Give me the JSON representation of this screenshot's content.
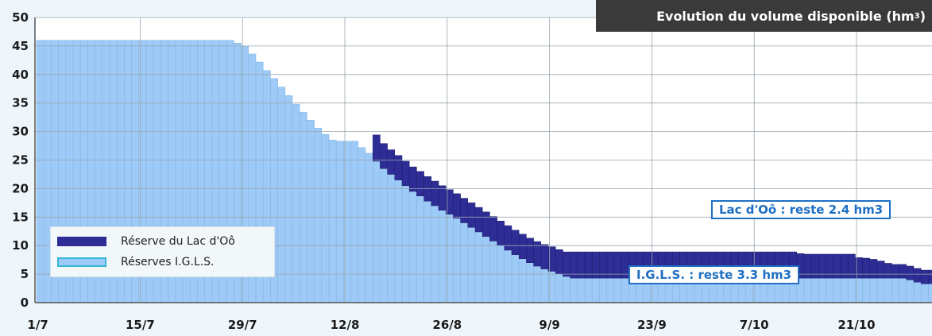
{
  "chart_data": {
    "type": "bar",
    "title_text": "Evolution du volume disponible (hm",
    "title_sup": "3",
    "title_close": ")",
    "ylim": [
      0,
      50
    ],
    "yticks": [
      0,
      5,
      10,
      15,
      20,
      25,
      30,
      35,
      40,
      45,
      50
    ],
    "x_tick_labels": [
      "1/7",
      "15/7",
      "29/7",
      "12/8",
      "26/8",
      "9/9",
      "23/9",
      "7/10",
      "21/10"
    ],
    "x_tick_day_index": [
      0,
      14,
      28,
      42,
      56,
      70,
      84,
      98,
      112
    ],
    "days_shown": 123,
    "grid": true,
    "legend_position": "bottom-left",
    "series": [
      {
        "name": "Réserves I.G.L.S.",
        "color": "#9dcaf6",
        "values": [
          46,
          46,
          46,
          46,
          46,
          46,
          46,
          46,
          46,
          46,
          46,
          46,
          46,
          46,
          46,
          46,
          46,
          46,
          46,
          46,
          46,
          46,
          46,
          46,
          46,
          46,
          46,
          45.5,
          45,
          43.6,
          42.2,
          40.7,
          39.3,
          37.8,
          36.3,
          34.8,
          33.4,
          32,
          30.6,
          29.5,
          28.5,
          28.3,
          28.3,
          28.3,
          27.2,
          26.2,
          24.8,
          23.5,
          22.5,
          21.5,
          20.5,
          19.5,
          18.7,
          17.8,
          17,
          16.2,
          15.5,
          14.8,
          14,
          13.2,
          12.4,
          11.6,
          10.8,
          10,
          9.2,
          8.4,
          7.7,
          7,
          6.4,
          5.9,
          5.5,
          5,
          4.6,
          4.3,
          4.3,
          4.3,
          4.3,
          4.3,
          4.3,
          4.3,
          4.3,
          4.3,
          4.3,
          4.3,
          4.3,
          4.3,
          4.3,
          4.3,
          4.3,
          4.3,
          4.3,
          4.3,
          4.3,
          4.3,
          4.3,
          4.3,
          4.3,
          4.3,
          4.3,
          4.3,
          4.3,
          4.3,
          4.3,
          4.3,
          4.3,
          4.3,
          4.3,
          4.3,
          4.3,
          4.3,
          4.3,
          4.3,
          4.3,
          4.3,
          4.3,
          4.3,
          4.3,
          4.3,
          4.3,
          4.0,
          3.6,
          3.3,
          3.3
        ]
      },
      {
        "name": "Réserve du Lac d'Oô",
        "color": "#2e2d96",
        "values": [
          0,
          0,
          0,
          0,
          0,
          0,
          0,
          0,
          0,
          0,
          0,
          0,
          0,
          0,
          0,
          0,
          0,
          0,
          0,
          0,
          0,
          0,
          0,
          0,
          0,
          0,
          0,
          0,
          0,
          0,
          0,
          0,
          0,
          0,
          0,
          0,
          0,
          0,
          0,
          0,
          0,
          0,
          0,
          0,
          0,
          0,
          4.6,
          4.4,
          4.3,
          4.3,
          4.3,
          4.3,
          4.3,
          4.3,
          4.3,
          4.3,
          4.3,
          4.3,
          4.3,
          4.3,
          4.3,
          4.3,
          4.3,
          4.3,
          4.3,
          4.3,
          4.3,
          4.3,
          4.3,
          4.3,
          4.3,
          4.3,
          4.3,
          4.6,
          4.6,
          4.6,
          4.6,
          4.6,
          4.6,
          4.6,
          4.6,
          4.6,
          4.6,
          4.6,
          4.6,
          4.6,
          4.6,
          4.6,
          4.6,
          4.6,
          4.6,
          4.6,
          4.6,
          4.6,
          4.6,
          4.6,
          4.6,
          4.6,
          4.6,
          4.6,
          4.6,
          4.6,
          4.6,
          4.6,
          4.3,
          4.2,
          4.2,
          4.2,
          4.2,
          4.2,
          4.2,
          4.2,
          3.6,
          3.5,
          3.3,
          3.0,
          2.6,
          2.4,
          2.4,
          2.4,
          2.4,
          2.4,
          2.4,
          2.4,
          2.4
        ]
      }
    ],
    "annotations": [
      {
        "text": "Lac d'Oô : reste 2.4 hm3"
      },
      {
        "text": "I.G.L.S. : reste 3.3 hm3"
      }
    ]
  }
}
